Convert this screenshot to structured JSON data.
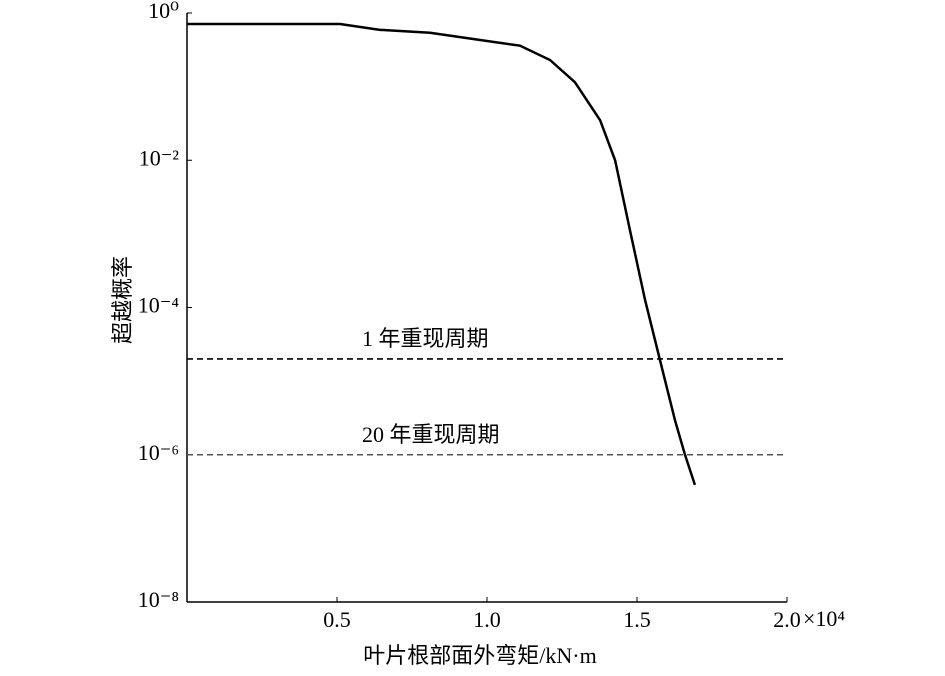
{
  "chart_data": {
    "type": "line",
    "x_label": "叶片根部面外弯矩/kN·m",
    "y_label": "超越概率",
    "x_multiplier": "×10⁴",
    "x": [
      0,
      0.51,
      0.643,
      0.81,
      0.977,
      1.11,
      1.21,
      1.293,
      1.377,
      1.427,
      1.477,
      1.527,
      1.577,
      1.627,
      1.66,
      1.693
    ],
    "series": [
      {
        "color": "#000000",
        "values": [
          0.71,
          0.71,
          0.59,
          0.54,
          0.43,
          0.36,
          0.23,
          0.115,
          0.035,
          0.01,
          0.0011,
          0.000126,
          1.9e-05,
          2.9e-06,
          1e-06,
          3.9e-07
        ]
      }
    ],
    "hlines": [
      {
        "value": 2e-05,
        "label": "1 年重现周期",
        "color": "#000000"
      },
      {
        "value": 1e-06,
        "label": "20 年重现周期",
        "color": "#555555"
      }
    ],
    "xlim": [
      0,
      2
    ],
    "xticks": [
      0.5,
      {
        "value": 1,
        "label": "1.0"
      },
      1.5,
      {
        "value": 2,
        "label": "2.0"
      }
    ],
    "ylim": [
      1e-08,
      1
    ],
    "yticks": [
      {
        "value": 1,
        "label": "10⁰"
      },
      {
        "value": 0.01,
        "label": "10⁻²"
      },
      {
        "value": 0.0001,
        "label": "10⁻⁴"
      },
      {
        "value": 1e-06,
        "label": "10⁻⁶"
      },
      {
        "value": 1e-08,
        "label": "10⁻⁸"
      }
    ],
    "y_log": true
  }
}
